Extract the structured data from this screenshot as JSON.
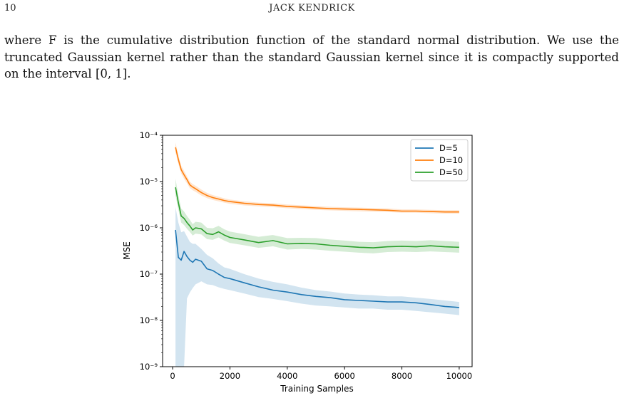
{
  "running_head": {
    "page_number": "10",
    "title": "JACK KENDRICK"
  },
  "paragraph": {
    "lines": [
      "where F is the cumulative distribution function of the standard normal distribution. We use the",
      "truncated Gaussian kernel rather than the standard Gaussian kernel since it is compactly supported",
      "on the interval [0, 1]."
    ]
  },
  "chart_data": {
    "type": "line",
    "title": "",
    "xlabel": "Training Samples",
    "ylabel": "MSE",
    "xlim": [
      -350,
      10450
    ],
    "ylim": [
      1e-09,
      0.0001
    ],
    "yscale": "log",
    "x_ticks": [
      "0",
      "2000",
      "4000",
      "6000",
      "8000",
      "10000"
    ],
    "y_ticks": [
      "10⁻⁹",
      "10⁻⁸",
      "10⁻⁷",
      "10⁻⁶",
      "10⁻⁵",
      "10⁻⁴"
    ],
    "grid": false,
    "legend_position": "top-right",
    "x": [
      100,
      200,
      300,
      400,
      500,
      600,
      700,
      800,
      1000,
      1200,
      1400,
      1600,
      1800,
      2000,
      2500,
      3000,
      3500,
      4000,
      4500,
      5000,
      5500,
      6000,
      6500,
      7000,
      7500,
      8000,
      8500,
      9000,
      9500,
      10000
    ],
    "series": [
      {
        "name": "D=5",
        "color": "#1f77b4",
        "values": [
          9e-07,
          2.3e-07,
          2e-07,
          3.1e-07,
          2.4e-07,
          2e-07,
          1.8e-07,
          2.1e-07,
          1.9e-07,
          1.3e-07,
          1.2e-07,
          1e-07,
          8.5e-08,
          8e-08,
          6.5e-08,
          5.3e-08,
          4.5e-08,
          4.1e-08,
          3.6e-08,
          3.3e-08,
          3.1e-08,
          2.8e-08,
          2.7e-08,
          2.6e-08,
          2.5e-08,
          2.5e-08,
          2.4e-08,
          2.2e-08,
          2e-08,
          1.9e-08
        ],
        "band_lower": [
          1e-09,
          1e-09,
          1e-09,
          1e-09,
          3e-08,
          4e-08,
          5e-08,
          6e-08,
          7e-08,
          6e-08,
          5.8e-08,
          5.2e-08,
          4.8e-08,
          4.5e-08,
          3.8e-08,
          3.2e-08,
          2.9e-08,
          2.6e-08,
          2.3e-08,
          2.1e-08,
          2e-08,
          1.9e-08,
          1.8e-08,
          1.8e-08,
          1.7e-08,
          1.7e-08,
          1.6e-08,
          1.5e-08,
          1.4e-08,
          1.3e-08
        ],
        "band_upper": [
          2.8e-06,
          1.3e-06,
          8e-07,
          8.5e-07,
          6.5e-07,
          5e-07,
          4.5e-07,
          4.5e-07,
          3.5e-07,
          2.6e-07,
          2.2e-07,
          1.7e-07,
          1.4e-07,
          1.3e-07,
          1e-07,
          8e-08,
          6.8e-08,
          6e-08,
          5.1e-08,
          4.5e-08,
          4.2e-08,
          3.8e-08,
          3.6e-08,
          3.5e-08,
          3.3e-08,
          3.3e-08,
          3.1e-08,
          2.9e-08,
          2.7e-08,
          2.5e-08
        ]
      },
      {
        "name": "D=10",
        "color": "#ff7f0e",
        "values": [
          5.5e-05,
          3e-05,
          1.8e-05,
          1.4e-05,
          1.1e-05,
          8.5e-06,
          7.6e-06,
          7e-06,
          5.8e-06,
          5e-06,
          4.5e-06,
          4.2e-06,
          3.9e-06,
          3.7e-06,
          3.4e-06,
          3.2e-06,
          3.1e-06,
          2.9e-06,
          2.8e-06,
          2.7e-06,
          2.6e-06,
          2.55e-06,
          2.5e-06,
          2.45e-06,
          2.4e-06,
          2.3e-06,
          2.3e-06,
          2.25e-06,
          2.2e-06,
          2.2e-06
        ],
        "band_lower": [
          4.2e-05,
          2.4e-05,
          1.5e-05,
          1.15e-05,
          9.2e-06,
          7.2e-06,
          6.5e-06,
          6e-06,
          5e-06,
          4.4e-06,
          4e-06,
          3.75e-06,
          3.5e-06,
          3.3e-06,
          3.05e-06,
          2.9e-06,
          2.8e-06,
          2.65e-06,
          2.55e-06,
          2.45e-06,
          2.38e-06,
          2.33e-06,
          2.28e-06,
          2.24e-06,
          2.2e-06,
          2.12e-06,
          2.12e-06,
          2.07e-06,
          2.03e-06,
          2.03e-06
        ],
        "band_upper": [
          7e-05,
          3.7e-05,
          2.2e-05,
          1.7e-05,
          1.3e-05,
          1e-05,
          8.8e-06,
          8.1e-06,
          6.7e-06,
          5.7e-06,
          5.1e-06,
          4.7e-06,
          4.35e-06,
          4.1e-06,
          3.75e-06,
          3.5e-06,
          3.4e-06,
          3.18e-06,
          3.06e-06,
          2.95e-06,
          2.84e-06,
          2.78e-06,
          2.73e-06,
          2.67e-06,
          2.62e-06,
          2.5e-06,
          2.5e-06,
          2.45e-06,
          2.4e-06,
          2.4e-06
        ]
      },
      {
        "name": "D=50",
        "color": "#2ca02c",
        "values": [
          7.5e-06,
          3.5e-06,
          1.8e-06,
          1.6e-06,
          1.3e-06,
          1.1e-06,
          9e-07,
          1e-06,
          9.5e-07,
          7.5e-07,
          7.2e-07,
          8.2e-07,
          7e-07,
          6.2e-07,
          5.5e-07,
          4.8e-07,
          5.3e-07,
          4.5e-07,
          4.6e-07,
          4.5e-07,
          4.2e-07,
          4e-07,
          3.8e-07,
          3.7e-07,
          3.9e-07,
          4e-07,
          3.9e-07,
          4.1e-07,
          3.9e-07,
          3.8e-07
        ],
        "band_lower": [
          5e-06,
          2.5e-06,
          1.3e-06,
          1.15e-06,
          9.5e-07,
          8.2e-07,
          6.8e-07,
          7.5e-07,
          7.2e-07,
          5.7e-07,
          5.5e-07,
          6.2e-07,
          5.3e-07,
          4.7e-07,
          4.2e-07,
          3.7e-07,
          4e-07,
          3.4e-07,
          3.5e-07,
          3.4e-07,
          3.2e-07,
          3.05e-07,
          2.9e-07,
          2.8e-07,
          3e-07,
          3.05e-07,
          3e-07,
          3.1e-07,
          3e-07,
          2.9e-07
        ],
        "band_upper": [
          1.15e-05,
          5e-06,
          2.6e-06,
          2.25e-06,
          1.8e-06,
          1.5e-06,
          1.2e-06,
          1.35e-06,
          1.3e-06,
          1e-06,
          9.8e-07,
          1.1e-06,
          9.3e-07,
          8.3e-07,
          7.3e-07,
          6.4e-07,
          7e-07,
          6e-07,
          6.1e-07,
          6e-07,
          5.6e-07,
          5.3e-07,
          5e-07,
          4.9e-07,
          5.2e-07,
          5.3e-07,
          5.2e-07,
          5.4e-07,
          5.2e-07,
          5e-07
        ]
      }
    ]
  }
}
